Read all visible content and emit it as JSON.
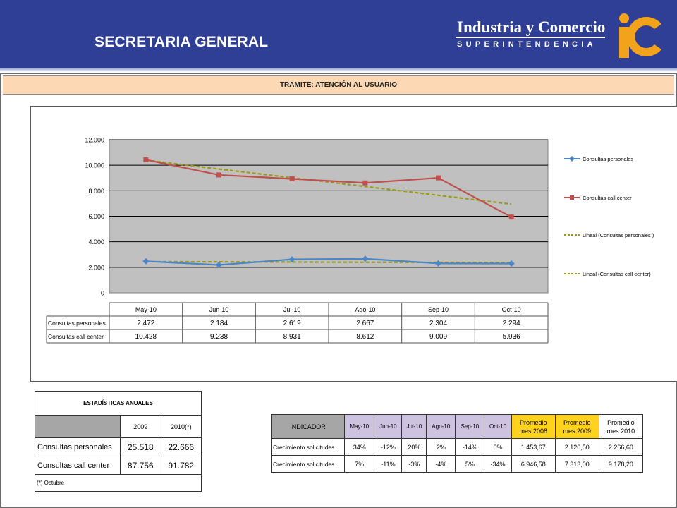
{
  "header": {
    "title": "SECRETARIA GENERAL",
    "logo_line1": "Industria y Comercio",
    "logo_line2": "SUPERINTENDENCIA",
    "bg_color": "#2e3f95"
  },
  "sheet": {
    "title": "TRAMITE:  ATENCIÓN AL USUARIO"
  },
  "chart_data": {
    "type": "line",
    "categories": [
      "May-10",
      "Jun-10",
      "Jul-10",
      "Ago-10",
      "Sep-10",
      "Oct-10"
    ],
    "yticks": [
      "0",
      "2.000",
      "4.000",
      "6.000",
      "8.000",
      "10.000",
      "12.000"
    ],
    "ylim": [
      0,
      12000
    ],
    "grid": true,
    "legend_position": "right",
    "series": [
      {
        "name": "Consultas  personales",
        "table_label": "Consultas personales",
        "values": [
          2472,
          2184,
          2619,
          2667,
          2304,
          2294
        ],
        "display": [
          "2.472",
          "2.184",
          "2.619",
          "2.667",
          "2.304",
          "2.294"
        ],
        "color": "#4a86c8",
        "marker": "diamond"
      },
      {
        "name": "Consultas  call center",
        "table_label": "Consultas call center",
        "values": [
          10428,
          9238,
          8931,
          8612,
          9009,
          5936
        ],
        "display": [
          "10.428",
          "9.238",
          "8.931",
          "8.612",
          "9.009",
          "5.936"
        ],
        "color": "#c0504d",
        "marker": "square"
      }
    ],
    "trendlines": [
      {
        "name": "Lineal  (Consultas  personales  )",
        "values": [
          2440,
          2425,
          2410,
          2395,
          2380,
          2365
        ],
        "color": "#9a9a1a"
      },
      {
        "name": "Lineal  (Consultas  call center)",
        "values": [
          10400,
          9700,
          9020,
          8330,
          7640,
          6950
        ],
        "color": "#9a9a1a"
      }
    ]
  },
  "annual": {
    "title": "ESTADÍSTICAS ANUALES",
    "years": [
      "2009",
      "2010(*)"
    ],
    "rows": [
      {
        "label": "Consultas personales",
        "values": [
          "25.518",
          "22.666"
        ]
      },
      {
        "label": "Consultas call center",
        "values": [
          "87.756",
          "91.782"
        ]
      }
    ],
    "footnote": "(*) Octubre"
  },
  "indicators": {
    "header": "INDICADOR",
    "months": [
      "May-10",
      "Jun-10",
      "Jul-10",
      "Ago-10",
      "Sep-10",
      "Oct-10"
    ],
    "promedio": [
      {
        "line1": "Promedio",
        "line2": "mes 2008"
      },
      {
        "line1": "Promedio",
        "line2": "mes 2009"
      },
      {
        "line1": "Promedio",
        "line2": "mes 2010"
      }
    ],
    "rows": [
      {
        "label": "Crecimiento solicitudes",
        "values": [
          "34%",
          "-12%",
          "20%",
          "2%",
          "-14%",
          "0%",
          "1.453,67",
          "2.126,50",
          "2.266,60"
        ]
      },
      {
        "label": "Crecimiento solicitudes",
        "values": [
          "7%",
          "-11%",
          "-3%",
          "-4%",
          "5%",
          "-34%",
          "6.946,58",
          "7.313,00",
          "9.178,20"
        ]
      }
    ]
  }
}
